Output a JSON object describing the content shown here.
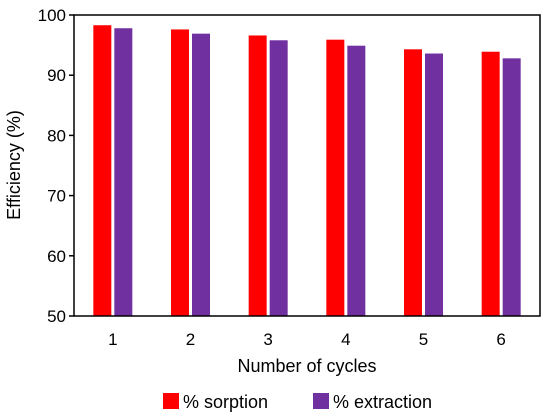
{
  "chart_data": {
    "type": "bar",
    "title": "",
    "xlabel": "Number of cycles",
    "ylabel": "Efficiency (%)",
    "categories": [
      "1",
      "2",
      "3",
      "4",
      "5",
      "6"
    ],
    "ylim": [
      50,
      100
    ],
    "yticks": [
      "50",
      "60",
      "70",
      "80",
      "90",
      "100"
    ],
    "grid": false,
    "legend_position": "bottom",
    "series": [
      {
        "name": "% sorption",
        "color": "#ff0000",
        "values": [
          98.3,
          97.6,
          96.6,
          95.9,
          94.3,
          93.9
        ]
      },
      {
        "name": "% extraction",
        "color": "#7030a0",
        "values": [
          97.8,
          96.9,
          95.8,
          94.9,
          93.6,
          92.8
        ]
      }
    ]
  }
}
